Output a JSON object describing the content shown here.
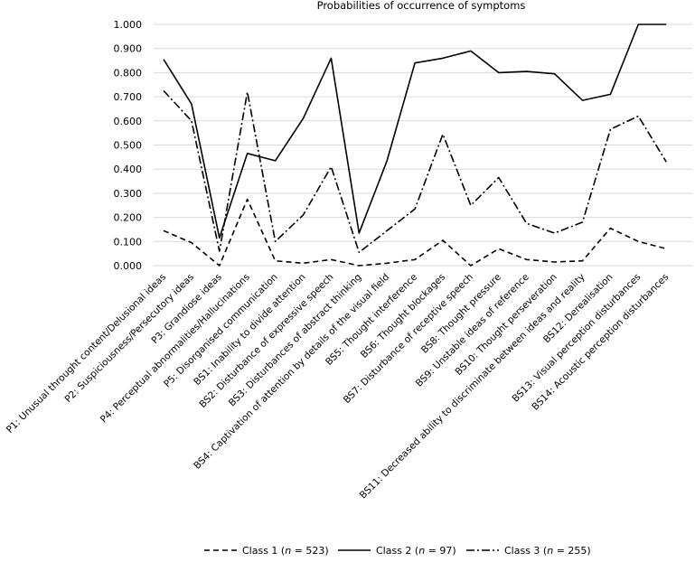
{
  "chart_data": {
    "type": "line",
    "title": "Probabilities of occurrence of symptoms",
    "xlabel": "",
    "ylabel": "",
    "ylim": [
      0,
      1
    ],
    "grid": true,
    "legend_position": "bottom",
    "y_ticks": [
      "0.000",
      "0.100",
      "0.200",
      "0.300",
      "0.400",
      "0.500",
      "0.600",
      "0.700",
      "0.800",
      "0.900",
      "1.000"
    ],
    "categories": [
      "P1: Unusual throught content/Delusional ideas",
      "P2: Suspiciousness/Persecutory ideas",
      "P3: Grandiose ideas",
      "P4: Perceptual abnormalities/Hallucinations",
      "P5: Disorganised communication",
      "BS1: Inability to divide attention",
      "BS2: Disturbance of expressive speech",
      "BS3: Disturbances of abstract thinking",
      "BS4: Captivation of attention by details of the visual field",
      "BS5: Thought interference",
      "BS6: Thought blockages",
      "BS7: Disturbance of receptive speech",
      "BS8: Thought pressure",
      "BS9: Unstable ideas of reference",
      "BS10: Thought perseveration",
      "BS11: Decreased ability to discriminate between ideas and reality",
      "BS12: Derealisation",
      "BS13: Visual perception disturbances",
      "BS14: Acoustic perception disturbances"
    ],
    "series": [
      {
        "name": "Class 1",
        "legend_prefix": "Class 1 (",
        "legend_italic": "n",
        "legend_suffix": " = 523)",
        "dash": "dashed",
        "values": [
          0.145,
          0.095,
          0.0,
          0.275,
          0.02,
          0.01,
          0.025,
          0.0,
          0.01,
          0.025,
          0.105,
          0.0,
          0.07,
          0.025,
          0.015,
          0.02,
          0.155,
          0.1,
          0.07
        ]
      },
      {
        "name": "Class 2",
        "legend_prefix": "Class 2 (",
        "legend_italic": "n",
        "legend_suffix": " = 97)",
        "dash": "solid",
        "values": [
          0.855,
          0.67,
          0.115,
          0.465,
          0.435,
          0.61,
          0.86,
          0.135,
          0.435,
          0.84,
          0.86,
          0.89,
          0.8,
          0.805,
          0.795,
          0.685,
          0.71,
          1.0,
          1.0
        ]
      },
      {
        "name": "Class 3",
        "legend_prefix": "Class 3 (",
        "legend_italic": "n",
        "legend_suffix": " = 255)",
        "dash": "dashdot",
        "values": [
          0.725,
          0.6,
          0.06,
          0.72,
          0.1,
          0.21,
          0.41,
          0.055,
          0.145,
          0.235,
          0.545,
          0.25,
          0.365,
          0.175,
          0.135,
          0.18,
          0.565,
          0.62,
          0.43
        ]
      }
    ],
    "line_color": "#000000",
    "grid_color": "#d9d9d9"
  }
}
